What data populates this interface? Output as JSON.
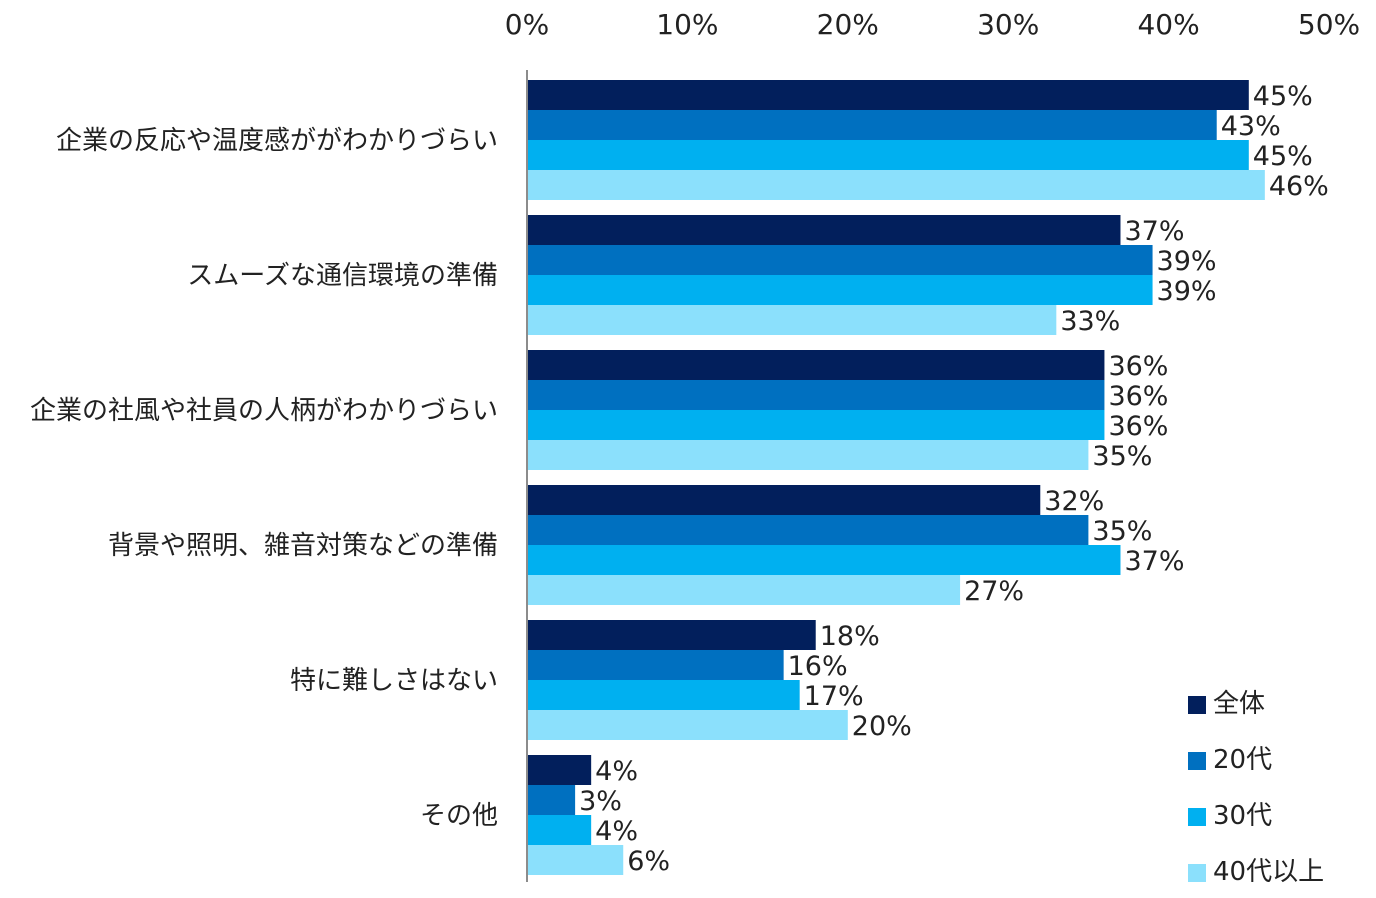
{
  "chart_data": {
    "type": "bar",
    "orientation": "horizontal",
    "title": "",
    "xlabel": "",
    "ylabel": "",
    "xlim": [
      0,
      50
    ],
    "x_ticks": [
      0,
      10,
      20,
      30,
      40,
      50
    ],
    "x_tick_labels": [
      "0%",
      "10%",
      "20%",
      "30%",
      "40%",
      "50%"
    ],
    "grid": false,
    "legend_position": "bottom-right",
    "categories": [
      "企業の反応や温度感ががわかりづらい",
      "スムーズな通信環境の準備",
      "企業の社風や社員の人柄がわかりづらい",
      "背景や照明、雑音対策などの準備",
      "特に難しさはない",
      "その他"
    ],
    "series": [
      {
        "name": "全体",
        "color": "#021f5c",
        "values": [
          45,
          37,
          36,
          32,
          18,
          4
        ]
      },
      {
        "name": "20代",
        "color": "#0070c0",
        "values": [
          43,
          39,
          36,
          35,
          16,
          3
        ]
      },
      {
        "name": "30代",
        "color": "#00b0f0",
        "values": [
          45,
          39,
          36,
          37,
          17,
          4
        ]
      },
      {
        "name": "40代以上",
        "color": "#8be0fc",
        "values": [
          46,
          33,
          35,
          27,
          20,
          6
        ]
      }
    ],
    "value_suffix": "%"
  }
}
